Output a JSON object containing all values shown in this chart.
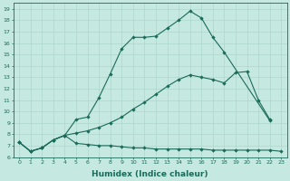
{
  "xlabel": "Humidex (Indice chaleur)",
  "bg_color": "#c5e8e0",
  "line_color": "#1a6b5a",
  "grid_color": "#aad4c8",
  "xlim": [
    -0.5,
    23.5
  ],
  "ylim": [
    6,
    19.5
  ],
  "xticks": [
    0,
    1,
    2,
    3,
    4,
    5,
    6,
    7,
    8,
    9,
    10,
    11,
    12,
    13,
    14,
    15,
    16,
    17,
    18,
    19,
    20,
    21,
    22,
    23
  ],
  "yticks": [
    6,
    7,
    8,
    9,
    10,
    11,
    12,
    13,
    14,
    15,
    16,
    17,
    18,
    19
  ],
  "line1_x": [
    0,
    1,
    2,
    3,
    4,
    5,
    6,
    7,
    8,
    9,
    10,
    11,
    12,
    13,
    14,
    15,
    16,
    17,
    18,
    22
  ],
  "line1_y": [
    7.3,
    6.5,
    6.8,
    7.5,
    7.9,
    9.3,
    9.5,
    11.2,
    13.3,
    15.5,
    16.5,
    16.5,
    16.6,
    17.3,
    18.0,
    18.8,
    18.2,
    16.5,
    15.2,
    9.2
  ],
  "line2_x": [
    0,
    1,
    2,
    3,
    4,
    5,
    6,
    7,
    8,
    9,
    10,
    11,
    12,
    13,
    14,
    15,
    16,
    17,
    18,
    19,
    20,
    21,
    22
  ],
  "line2_y": [
    7.3,
    6.5,
    6.8,
    7.5,
    7.9,
    8.1,
    8.3,
    8.6,
    9.0,
    9.5,
    10.2,
    10.8,
    11.5,
    12.2,
    12.8,
    13.2,
    13.0,
    12.8,
    12.5,
    13.4,
    13.5,
    11.0,
    9.3
  ],
  "line3_x": [
    0,
    1,
    2,
    3,
    4,
    5,
    6,
    7,
    8,
    9,
    10,
    11,
    12,
    13,
    14,
    15,
    16,
    17,
    18,
    19,
    20,
    21,
    22,
    23
  ],
  "line3_y": [
    7.3,
    6.5,
    6.8,
    7.5,
    7.9,
    7.2,
    7.1,
    7.0,
    7.0,
    6.9,
    6.8,
    6.8,
    6.7,
    6.7,
    6.7,
    6.7,
    6.7,
    6.6,
    6.6,
    6.6,
    6.6,
    6.6,
    6.6,
    6.5
  ]
}
